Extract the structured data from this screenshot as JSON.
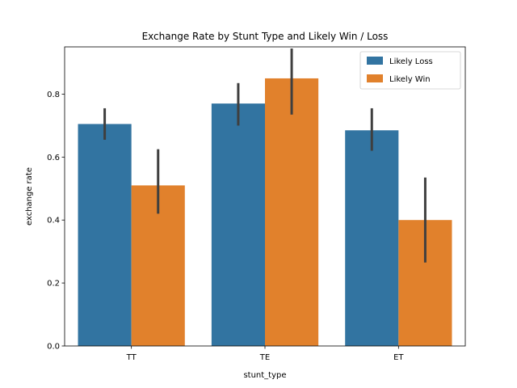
{
  "chart_data": {
    "type": "bar",
    "title": "Exchange Rate by Stunt Type and Likely Win / Loss",
    "xlabel": "stunt_type",
    "ylabel": "exchange rate",
    "categories": [
      "TT",
      "TE",
      "ET"
    ],
    "ylim": [
      0,
      0.95
    ],
    "yticks": [
      0.0,
      0.2,
      0.4,
      0.6,
      0.8
    ],
    "ytick_labels": [
      "0.0",
      "0.2",
      "0.4",
      "0.6",
      "0.8"
    ],
    "grid": false,
    "legend_position": "top-right",
    "series": [
      {
        "name": "Likely Loss",
        "color": "#3274a1",
        "values": [
          0.705,
          0.77,
          0.685
        ],
        "ci_low": [
          0.655,
          0.7,
          0.62
        ],
        "ci_high": [
          0.755,
          0.835,
          0.755
        ]
      },
      {
        "name": "Likely Win",
        "color": "#e1812c",
        "values": [
          0.51,
          0.85,
          0.4
        ],
        "ci_low": [
          0.42,
          0.735,
          0.265
        ],
        "ci_high": [
          0.625,
          0.945,
          0.535
        ]
      }
    ],
    "errorbar_color": "#3f3f3f"
  }
}
